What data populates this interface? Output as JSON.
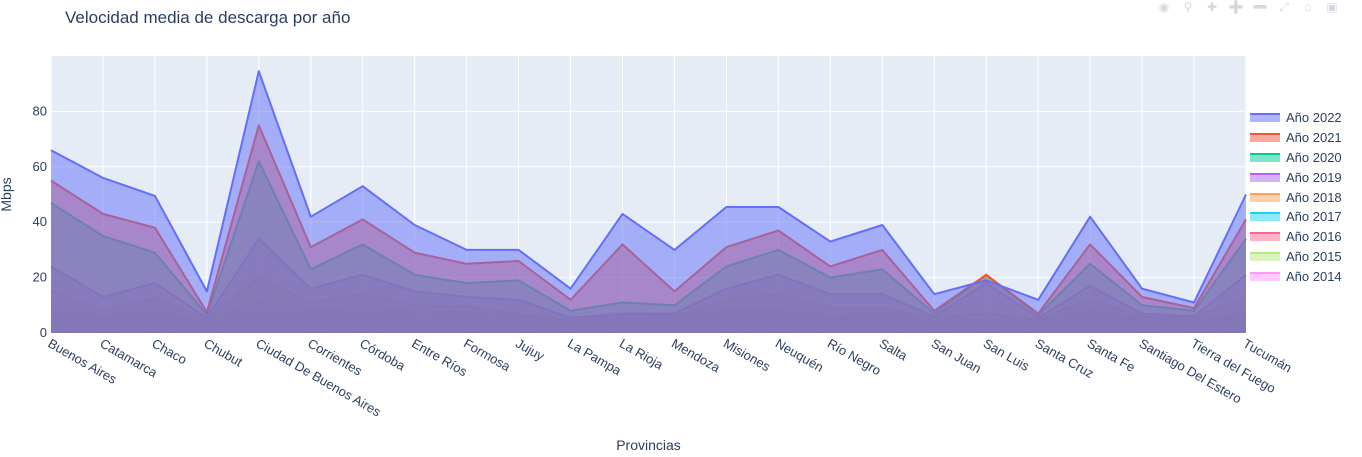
{
  "title": "Velocidad media de descarga por año",
  "modebar": [
    "camera-icon",
    "zoom-icon",
    "pan-icon",
    "zoom-in-icon",
    "zoom-out-icon",
    "autoscale-icon",
    "reset-icon",
    "plotly-logo-icon"
  ],
  "chart_data": {
    "type": "area",
    "stacking": "overlay",
    "xlabel": "Provincias",
    "ylabel": "Mbps",
    "ylim": [
      0,
      100
    ],
    "yticks": [
      0,
      20,
      40,
      60,
      80
    ],
    "grid": true,
    "legend_position": "right",
    "categories": [
      "Buenos Aires",
      "Catamarca",
      "Chaco",
      "Chubut",
      "Ciudad De Buenos Aires",
      "Corrientes",
      "Córdoba",
      "Entre Ríos",
      "Formosa",
      "Jujuy",
      "La Pampa",
      "La Rioja",
      "Mendoza",
      "Misiones",
      "Neuquén",
      "Río Negro",
      "Salta",
      "San Juan",
      "San Luis",
      "Santa Cruz",
      "Santa Fe",
      "Santiago Del Estero",
      "Tierra del Fuego",
      "Tucumán"
    ],
    "series": [
      {
        "name": "Año 2014",
        "color": "#FF97FF",
        "values": [
          4,
          3.5,
          4,
          3,
          4.5,
          4,
          4,
          3.5,
          3,
          3,
          2.5,
          3.5,
          3,
          4,
          4,
          3.5,
          4,
          3,
          3,
          3,
          4,
          3,
          3,
          4
        ]
      },
      {
        "name": "Año 2015",
        "color": "#B6E880",
        "values": [
          5,
          4,
          5.5,
          3.5,
          6,
          5,
          5,
          4.5,
          4,
          3.5,
          3,
          4.5,
          4,
          5.5,
          5,
          4.5,
          5,
          3.5,
          3.5,
          3.5,
          5,
          4,
          3.5,
          5
        ]
      },
      {
        "name": "Año 2016",
        "color": "#FF6692",
        "values": [
          6,
          5,
          6,
          4,
          7,
          6,
          6,
          5.5,
          5,
          4.5,
          3.5,
          5.5,
          5,
          6.5,
          6,
          5,
          6,
          4,
          4,
          4,
          6,
          4.5,
          4,
          6
        ]
      },
      {
        "name": "Año 2017",
        "color": "#19D3F3",
        "values": [
          8,
          6,
          7.5,
          4.5,
          11,
          8,
          9,
          8,
          7.5,
          6,
          4,
          7,
          6.5,
          8,
          8,
          6,
          7,
          4.5,
          4.5,
          4.5,
          8,
          5,
          5,
          7
        ]
      },
      {
        "name": "Año 2018",
        "color": "#FFA15A",
        "values": [
          15,
          8,
          12.5,
          5,
          20,
          11,
          14,
          10,
          9.5,
          7,
          4.5,
          6,
          6,
          12,
          14,
          9,
          9,
          5.5,
          7,
          5,
          12,
          6,
          5.5,
          13
        ]
      },
      {
        "name": "Año 2019",
        "color": "#AB63FA",
        "values": [
          24,
          13,
          18,
          5.5,
          34,
          16,
          21,
          15,
          13,
          12,
          5.5,
          7,
          7,
          16,
          21,
          14,
          14,
          6,
          18,
          5.5,
          17,
          7,
          6,
          21
        ]
      },
      {
        "name": "Año 2020",
        "color": "#00CC96",
        "values": [
          47,
          35,
          29,
          6.5,
          62,
          23,
          32,
          21,
          18,
          19,
          8,
          11,
          10,
          24,
          30,
          20,
          23,
          7,
          21,
          6.5,
          25,
          10,
          8,
          34
        ]
      },
      {
        "name": "Año 2021",
        "color": "#EF553B",
        "values": [
          55,
          43,
          38,
          7.5,
          75,
          31,
          41,
          29,
          25,
          26,
          12,
          32,
          15,
          31,
          37,
          24,
          30,
          8,
          21,
          7,
          32,
          13,
          9,
          41
        ]
      },
      {
        "name": "Año 2022",
        "color": "#636EFA",
        "values": [
          66,
          56,
          49.5,
          15,
          94.5,
          42,
          53,
          39,
          30,
          30,
          16,
          43,
          30,
          45.5,
          45.5,
          33,
          39,
          14,
          19,
          12,
          42,
          16,
          11,
          50
        ]
      }
    ]
  }
}
